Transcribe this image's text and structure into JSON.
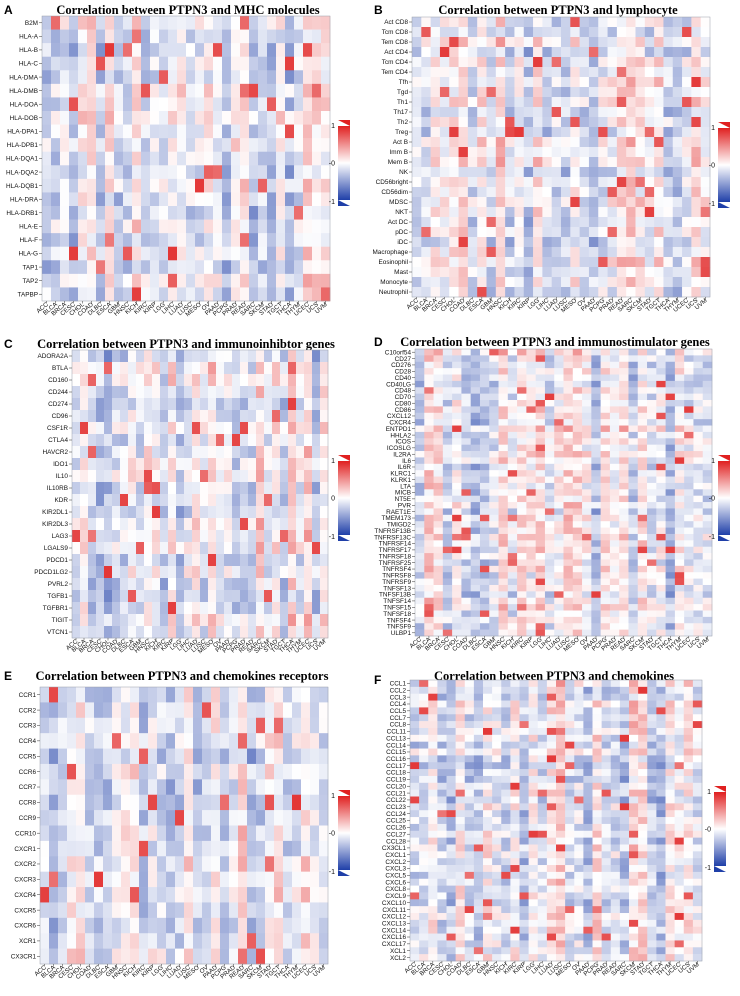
{
  "cancers": [
    "ACC",
    "BLCA",
    "BRCA",
    "CESC",
    "CHOL",
    "COAD",
    "DLBC",
    "ESCA",
    "GBM",
    "HNSC",
    "KICH",
    "KIRC",
    "KIRP",
    "LGG",
    "LIHC",
    "LUAD",
    "LUSC",
    "MESO",
    "OV",
    "PAAD",
    "PCPG",
    "PRAD",
    "READ",
    "SARC",
    "SKCM",
    "STAD",
    "TGCT",
    "THCA",
    "THYM",
    "UCEC",
    "UCS",
    "UVM"
  ],
  "colors": {
    "high": "#e02020",
    "low": "#1f3fa8",
    "mid": "#ffffff"
  },
  "chart_data": [
    {
      "panel": "A",
      "type": "heatmap",
      "title": "Correlation between PTPN3 and MHC molecules",
      "rows": [
        "B2M",
        "HLA-A",
        "HLA-B",
        "HLA-C",
        "HLA-DMA",
        "HLA-DMB",
        "HLA-DOA",
        "HLA-DOB",
        "HLA-DPA1",
        "HLA-DPB1",
        "HLA-DQA1",
        "HLA-DQA2",
        "HLA-DQB1",
        "HLA-DRA",
        "HLA-DRB1",
        "HLA-E",
        "HLA-F",
        "HLA-G",
        "TAP1",
        "TAP2",
        "TAPBP"
      ],
      "legend_max": "1",
      "legend_mid": "-0",
      "legend_min": "-1",
      "seed": 11
    },
    {
      "panel": "B",
      "type": "heatmap",
      "title": "Correlation between PTPN3 and lymphocyte",
      "rows": [
        "Act CD8",
        "Tcm CD8",
        "Tem CD8",
        "Act CD4",
        "Tcm CD4",
        "Tem CD4",
        "Tfh",
        "Tgd",
        "Th1",
        "Th17",
        "Th2",
        "Treg",
        "Act B",
        "Imm B",
        "Mem B",
        "NK",
        "CD56bright",
        "CD56dim",
        "MDSC",
        "NKT",
        "Act DC",
        "pDC",
        "iDC",
        "Macrophage",
        "Eosinophil",
        "Mast",
        "Monocyte",
        "Neutrophil"
      ],
      "legend_max": "1",
      "legend_mid": "-0",
      "legend_min": "-1",
      "seed": 23
    },
    {
      "panel": "C",
      "type": "heatmap",
      "title": "Correlation between PTPN3 and immunoinhibtor genes",
      "rows": [
        "ADORA2A",
        "BTLA",
        "CD160",
        "CD244",
        "CD274",
        "CD96",
        "CSF1R",
        "CTLA4",
        "HAVCR2",
        "IDO1",
        "IL10",
        "IL10RB",
        "KDR",
        "KIR2DL1",
        "KIR2DL3",
        "LAG3",
        "LGALS9",
        "PDCD1",
        "PDCD1LG2",
        "PVRL2",
        "TGFB1",
        "TGFBR1",
        "TIGIT",
        "VTCN1"
      ],
      "legend_max": "1",
      "legend_mid": "0",
      "legend_min": "-1",
      "seed": 37
    },
    {
      "panel": "D",
      "type": "heatmap",
      "title": "Correlation between PTPN3 and immunostimulator genes",
      "rows": [
        "C10orf54",
        "CD27",
        "CD276",
        "CD28",
        "CD40",
        "CD40LG",
        "CD48",
        "CD70",
        "CD80",
        "CD86",
        "CXCL12",
        "CXCR4",
        "ENTPD1",
        "HHLA2",
        "ICOS",
        "ICOSLG",
        "IL2RA",
        "IL6",
        "IL6R",
        "KLRC1",
        "KLRK1",
        "LTA",
        "MICB",
        "NT5E",
        "PVR",
        "RAET1E",
        "TMEM173",
        "TMIGD2",
        "TNFRSF13B",
        "TNFRSF13C",
        "TNFRSF14",
        "TNFRSF17",
        "TNFRSF18",
        "TNFRSF25",
        "TNFRSF4",
        "TNFRSF8",
        "TNFRSF9",
        "TNFSF13",
        "TNFSF13B",
        "TNFSF14",
        "TNFSF15",
        "TNFSF18",
        "TNFSF4",
        "TNFSF9",
        "ULBP1"
      ],
      "legend_max": "1",
      "legend_mid": "-0",
      "legend_min": "-1",
      "seed": 41
    },
    {
      "panel": "E",
      "type": "heatmap",
      "title": "Correlation between PTPN3 and chemokines receptors",
      "rows": [
        "CCR1",
        "CCR2",
        "CCR3",
        "CCR4",
        "CCR5",
        "CCR6",
        "CCR7",
        "CCR8",
        "CCR9",
        "CCR10",
        "CXCR1",
        "CXCR2",
        "CXCR3",
        "CXCR4",
        "CXCR5",
        "CXCR6",
        "XCR1",
        "CX3CR1"
      ],
      "legend_max": "1",
      "legend_mid": "-0",
      "legend_min": "-1",
      "seed": 53
    },
    {
      "panel": "F",
      "type": "heatmap",
      "title": "Correlation between PTPN3 and chemokines",
      "rows": [
        "CCL1",
        "CCL2",
        "CCL3",
        "CCL4",
        "CCL5",
        "CCL7",
        "CCL8",
        "CCL11",
        "CCL13",
        "CCL14",
        "CCL15",
        "CCL16",
        "CCL17",
        "CCL18",
        "CCL19",
        "CCL20",
        "CCL21",
        "CCL22",
        "CCL23",
        "CCL24",
        "CCL25",
        "CCL26",
        "CCL27",
        "CCL28",
        "CX3CL1",
        "CXCL1",
        "CXCL2",
        "CXCL3",
        "CXCL5",
        "CXCL6",
        "CXCL8",
        "CXCL9",
        "CXCL10",
        "CXCL11",
        "CXCL12",
        "CXCL13",
        "CXCL14",
        "CXCL16",
        "CXCL17",
        "XCL1",
        "XCL2"
      ],
      "legend_max": "1",
      "legend_mid": "-0",
      "legend_min": "-1",
      "seed": 67
    }
  ]
}
